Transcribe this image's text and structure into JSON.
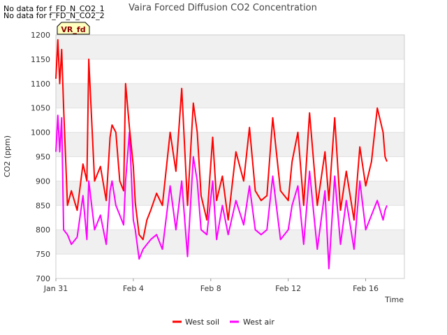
{
  "notes": [
    "No data for f_FD_N_CO2_1",
    "No data for f_FD_N_CO2_2"
  ],
  "badge": "VR_fd",
  "colors": {
    "west_soil": "#ff0000",
    "west_air": "#ff00ff",
    "band": "#f0f0f0",
    "badge_bg": "#ffffc0"
  },
  "chart_data": {
    "type": "line",
    "title": "Vaira Forced Diffusion CO2 Concentration",
    "xlabel": "Time",
    "ylabel": "CO2 (ppm)",
    "x_ticks": [
      "Jan 31",
      "Feb 4",
      "Feb 8",
      "Feb 12",
      "Feb 16"
    ],
    "x_tick_days": [
      0,
      4,
      8,
      12,
      16
    ],
    "xlim_days": [
      0,
      18
    ],
    "ylim": [
      700,
      1200
    ],
    "y_ticks": [
      700,
      750,
      800,
      850,
      900,
      950,
      1000,
      1050,
      1100,
      1150,
      1200
    ],
    "grid": true,
    "legend_position": "bottom",
    "series": [
      {
        "name": "West soil",
        "color": "#ff0000",
        "x_days": [
          0.0,
          0.1,
          0.2,
          0.3,
          0.4,
          0.6,
          0.8,
          1.1,
          1.4,
          1.6,
          1.7,
          2.0,
          2.3,
          2.6,
          2.8,
          2.9,
          3.1,
          3.3,
          3.5,
          3.6,
          3.8,
          4.0,
          4.1,
          4.3,
          4.5,
          4.7,
          4.9,
          5.2,
          5.5,
          5.9,
          6.2,
          6.5,
          6.8,
          7.1,
          7.3,
          7.5,
          7.8,
          8.1,
          8.3,
          8.6,
          8.9,
          9.3,
          9.7,
          10.0,
          10.3,
          10.6,
          10.9,
          11.2,
          11.6,
          12.0,
          12.2,
          12.5,
          12.8,
          13.1,
          13.5,
          13.9,
          14.1,
          14.4,
          14.7,
          15.0,
          15.4,
          15.7,
          16.0,
          16.3,
          16.6,
          16.9,
          17.0,
          17.1
        ],
        "values": [
          1110,
          1190,
          1100,
          1170,
          1050,
          850,
          880,
          840,
          935,
          900,
          1150,
          900,
          930,
          860,
          990,
          1015,
          1000,
          900,
          880,
          1100,
          1010,
          930,
          855,
          790,
          780,
          820,
          840,
          875,
          850,
          1000,
          920,
          1090,
          850,
          1060,
          1000,
          870,
          820,
          990,
          860,
          910,
          820,
          960,
          900,
          1010,
          880,
          860,
          870,
          1030,
          880,
          860,
          940,
          1000,
          850,
          1040,
          850,
          960,
          860,
          1030,
          840,
          920,
          820,
          970,
          890,
          940,
          1050,
          1000,
          950,
          940
        ]
      },
      {
        "name": "West air",
        "color": "#ff00ff",
        "x_days": [
          0.0,
          0.1,
          0.2,
          0.3,
          0.4,
          0.6,
          0.8,
          1.1,
          1.4,
          1.6,
          1.7,
          2.0,
          2.3,
          2.6,
          2.8,
          2.9,
          3.1,
          3.3,
          3.5,
          3.6,
          3.8,
          4.0,
          4.1,
          4.3,
          4.5,
          4.7,
          4.9,
          5.2,
          5.5,
          5.9,
          6.2,
          6.5,
          6.8,
          7.1,
          7.3,
          7.5,
          7.8,
          8.1,
          8.3,
          8.6,
          8.9,
          9.3,
          9.7,
          10.0,
          10.3,
          10.6,
          10.9,
          11.2,
          11.6,
          12.0,
          12.2,
          12.5,
          12.8,
          13.1,
          13.5,
          13.9,
          14.1,
          14.4,
          14.7,
          15.0,
          15.4,
          15.7,
          16.0,
          16.3,
          16.6,
          16.9,
          17.0,
          17.1
        ],
        "values": [
          960,
          1035,
          960,
          1030,
          800,
          790,
          770,
          785,
          870,
          780,
          900,
          800,
          830,
          770,
          880,
          900,
          850,
          830,
          810,
          900,
          1000,
          820,
          800,
          740,
          760,
          770,
          780,
          790,
          760,
          890,
          800,
          900,
          745,
          950,
          900,
          800,
          790,
          900,
          780,
          850,
          790,
          860,
          810,
          890,
          800,
          790,
          800,
          910,
          780,
          800,
          850,
          890,
          770,
          920,
          760,
          880,
          720,
          910,
          770,
          860,
          760,
          900,
          800,
          830,
          860,
          820,
          840,
          850
        ]
      }
    ]
  }
}
